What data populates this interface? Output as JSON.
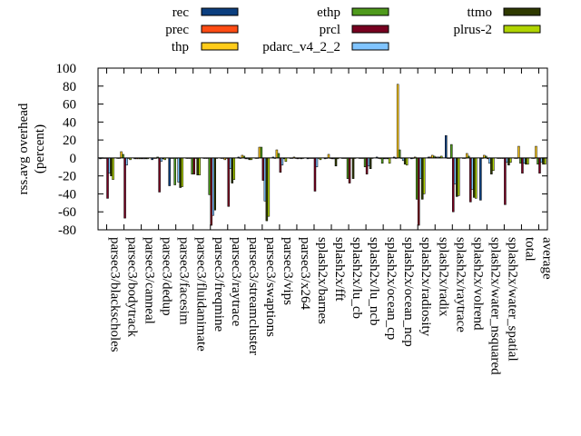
{
  "chart_data": {
    "type": "bar",
    "title": "",
    "ylabel": "rss.avg overhead\n(percent)",
    "xlabel": "",
    "ylim": [
      -80,
      100
    ],
    "yticks": [
      -80,
      -60,
      -40,
      -20,
      0,
      20,
      40,
      60,
      80,
      100
    ],
    "grid": false,
    "legend": "top",
    "categories": [
      "parsec3/blackscholes",
      "parsec3/bodytrack",
      "parsec3/canneal",
      "parsec3/dedup",
      "parsec3/facesim",
      "parsec3/fluidanimate",
      "parsec3/freqmine",
      "parsec3/raytrace",
      "parsec3/streamcluster",
      "parsec3/swaptions",
      "parsec3/vips",
      "parsec3/x264",
      "splash2x/barnes",
      "splash2x/fft",
      "splash2x/lu_cb",
      "splash2x/lu_ncb",
      "splash2x/ocean_cp",
      "splash2x/ocean_ncp",
      "splash2x/radiosity",
      "splash2x/radix",
      "splash2x/raytrace",
      "splash2x/volrend",
      "splash2x/water_nsquared",
      "splash2x/water_spatial",
      "total",
      "average"
    ],
    "series": [
      {
        "name": "rec",
        "color": "#0c3f7f",
        "values": [
          -1,
          0,
          -1,
          -2,
          -31,
          0,
          0,
          0,
          1,
          0,
          1,
          0,
          -1,
          -1,
          0,
          0,
          1,
          1,
          -1,
          1,
          25,
          0,
          -47,
          0,
          0,
          0
        ]
      },
      {
        "name": "prec",
        "color": "#ff4c14",
        "values": [
          0,
          0,
          -1,
          0,
          0,
          0,
          0,
          0,
          0,
          0,
          0,
          0,
          0,
          0,
          0,
          0,
          0,
          0,
          0,
          1,
          0,
          0,
          0,
          0,
          0,
          0
        ]
      },
      {
        "name": "thp",
        "color": "#ffcc1a",
        "values": [
          0,
          7,
          -1,
          0,
          0,
          0,
          0,
          -2,
          3,
          12,
          9,
          1,
          0,
          4,
          0,
          0,
          -1,
          82,
          1,
          3,
          0,
          5,
          3,
          0,
          13,
          13
        ]
      },
      {
        "name": "ethp",
        "color": "#4f9a1c",
        "values": [
          0,
          4,
          -1,
          1,
          -30,
          -18,
          -41,
          0,
          2,
          12,
          5,
          0,
          0,
          0,
          -23,
          -10,
          -6,
          9,
          -46,
          2,
          15,
          2,
          2,
          0,
          -6,
          -7
        ]
      },
      {
        "name": "prcl",
        "color": "#770020",
        "values": [
          -45,
          -67,
          -1,
          -38,
          0,
          -18,
          -75,
          -54,
          -1,
          -25,
          -16,
          -1,
          -37,
          -1,
          -28,
          -18,
          -1,
          0,
          -75,
          1,
          -60,
          -49,
          -1,
          -52,
          -17,
          -17
        ]
      },
      {
        "name": "pdarc_v4_2_2",
        "color": "#80c4ff",
        "values": [
          -17,
          -8,
          -1,
          -4,
          -27,
          0,
          -64,
          -12,
          -1,
          -48,
          -8,
          0,
          -10,
          -1,
          0,
          -9,
          -1,
          -3,
          -23,
          1,
          -29,
          -35,
          -6,
          -5,
          -6,
          -5
        ]
      },
      {
        "name": "ttmo",
        "color": "#2f3a00",
        "values": [
          -20,
          0,
          -1,
          -1,
          -33,
          -19,
          -58,
          -28,
          -2,
          -70,
          -1,
          -1,
          0,
          -9,
          -23,
          -12,
          -1,
          -7,
          -46,
          1,
          -43,
          -44,
          -18,
          -8,
          -7,
          -7
        ]
      },
      {
        "name": "plrus-2",
        "color": "#b0d400",
        "values": [
          -24,
          -2,
          -1,
          -2,
          -32,
          -19,
          0,
          -24,
          -2,
          -65,
          -4,
          0,
          -2,
          -1,
          0,
          0,
          -6,
          -8,
          -40,
          2,
          -42,
          -45,
          -14,
          -5,
          -7,
          -7
        ]
      }
    ]
  }
}
